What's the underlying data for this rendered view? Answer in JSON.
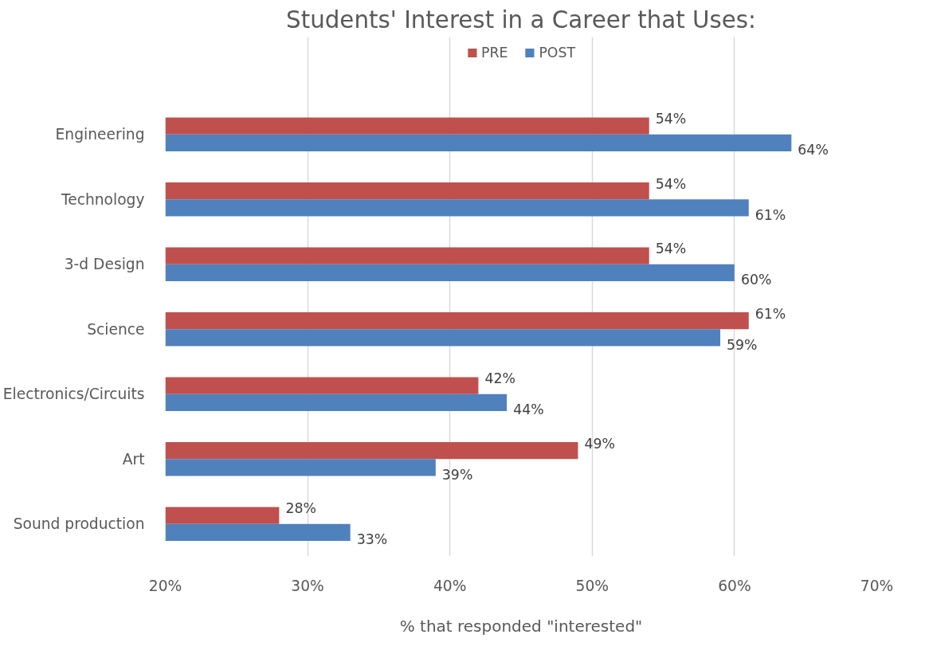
{
  "chart_data": {
    "type": "bar",
    "orientation": "horizontal",
    "title": "Students' Interest in a Career that Uses:",
    "xlabel": "% that responded \"interested\"",
    "categories": [
      "Engineering",
      "Technology",
      "3-d Design",
      "Science",
      "Electronics/Circuits",
      "Art",
      "Sound production"
    ],
    "series": [
      {
        "name": "PRE",
        "color": "#c0504d",
        "values": [
          54,
          54,
          54,
          61,
          42,
          49,
          28
        ],
        "value_labels": [
          "54%",
          "54%",
          "54%",
          "61%",
          "42%",
          "49%",
          "28%"
        ]
      },
      {
        "name": "POST",
        "color": "#4f81bd",
        "values": [
          64,
          61,
          60,
          59,
          44,
          39,
          33
        ],
        "value_labels": [
          "64%",
          "61%",
          "60%",
          "59%",
          "44%",
          "39%",
          "33%"
        ]
      }
    ],
    "xlim": [
      20,
      70
    ],
    "xticks": [
      {
        "value": 20,
        "label": "20%"
      },
      {
        "value": 30,
        "label": "30%"
      },
      {
        "value": 40,
        "label": "40%"
      },
      {
        "value": 50,
        "label": "50%"
      },
      {
        "value": 60,
        "label": "60%"
      },
      {
        "value": 70,
        "label": "70%"
      }
    ],
    "grid": "x",
    "legend": "top"
  }
}
